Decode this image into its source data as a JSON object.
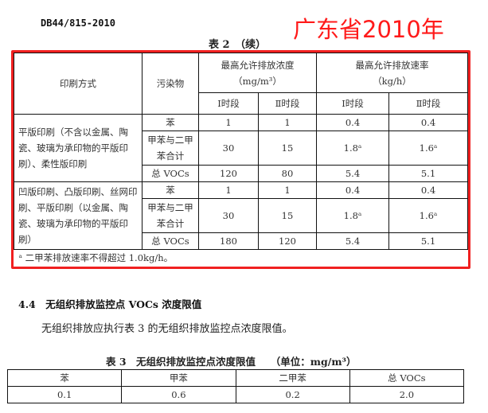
{
  "header": {
    "doc_id": "DB44/815-2010",
    "stamp": "广东省2010年"
  },
  "table2": {
    "caption": "表 2　（续）",
    "headers": {
      "method": "印刷方式",
      "pollutant": "污染物",
      "conc": "最高允许排放浓度",
      "conc_unit": "（mg/m³）",
      "rate": "最高允许排放速率",
      "rate_unit": "（kg/h）",
      "p1": "Ⅰ时段",
      "p2": "Ⅱ时段",
      "p3": "Ⅰ时段",
      "p4": "Ⅱ时段"
    },
    "groups": [
      {
        "method": "平版印刷（不含以金属、陶瓷、玻璃为承印物的平版印刷）、柔性版印刷",
        "rows": [
          [
            "苯",
            "1",
            "1",
            "0.4",
            "0.4"
          ],
          [
            "甲苯与二甲苯合计",
            "30",
            "15",
            "1.8ᵃ",
            "1.6ᵃ"
          ],
          [
            "总 VOCs",
            "120",
            "80",
            "5.4",
            "5.1"
          ]
        ]
      },
      {
        "method": "凹版印刷、凸版印刷、丝网印刷、平版印刷（以金属、陶瓷、玻璃为承印物的平版印刷）",
        "rows": [
          [
            "苯",
            "1",
            "1",
            "0.4",
            "0.4"
          ],
          [
            "甲苯与二甲苯合计",
            "30",
            "15",
            "1.8ᵃ",
            "1.6ᵃ"
          ],
          [
            "总 VOCs",
            "180",
            "120",
            "5.4",
            "5.1"
          ]
        ]
      }
    ],
    "footnote": "ᵃ 二甲苯排放速率不得超过 1.0kg/h。"
  },
  "section": {
    "heading": "4.4　无组织排放监控点 VOCs 浓度限值",
    "paragraph": "无组织排放应执行表 3 的无组织排放监控点浓度限值。"
  },
  "table3": {
    "caption": "表 3　无组织排放监控点浓度限值　　（单位：mg/m³）",
    "headers": [
      "苯",
      "甲苯",
      "二甲苯",
      "总 VOCs"
    ],
    "values": [
      "0.1",
      "0.6",
      "0.2",
      "2.0"
    ]
  },
  "colors": {
    "highlight": "#f02020"
  }
}
